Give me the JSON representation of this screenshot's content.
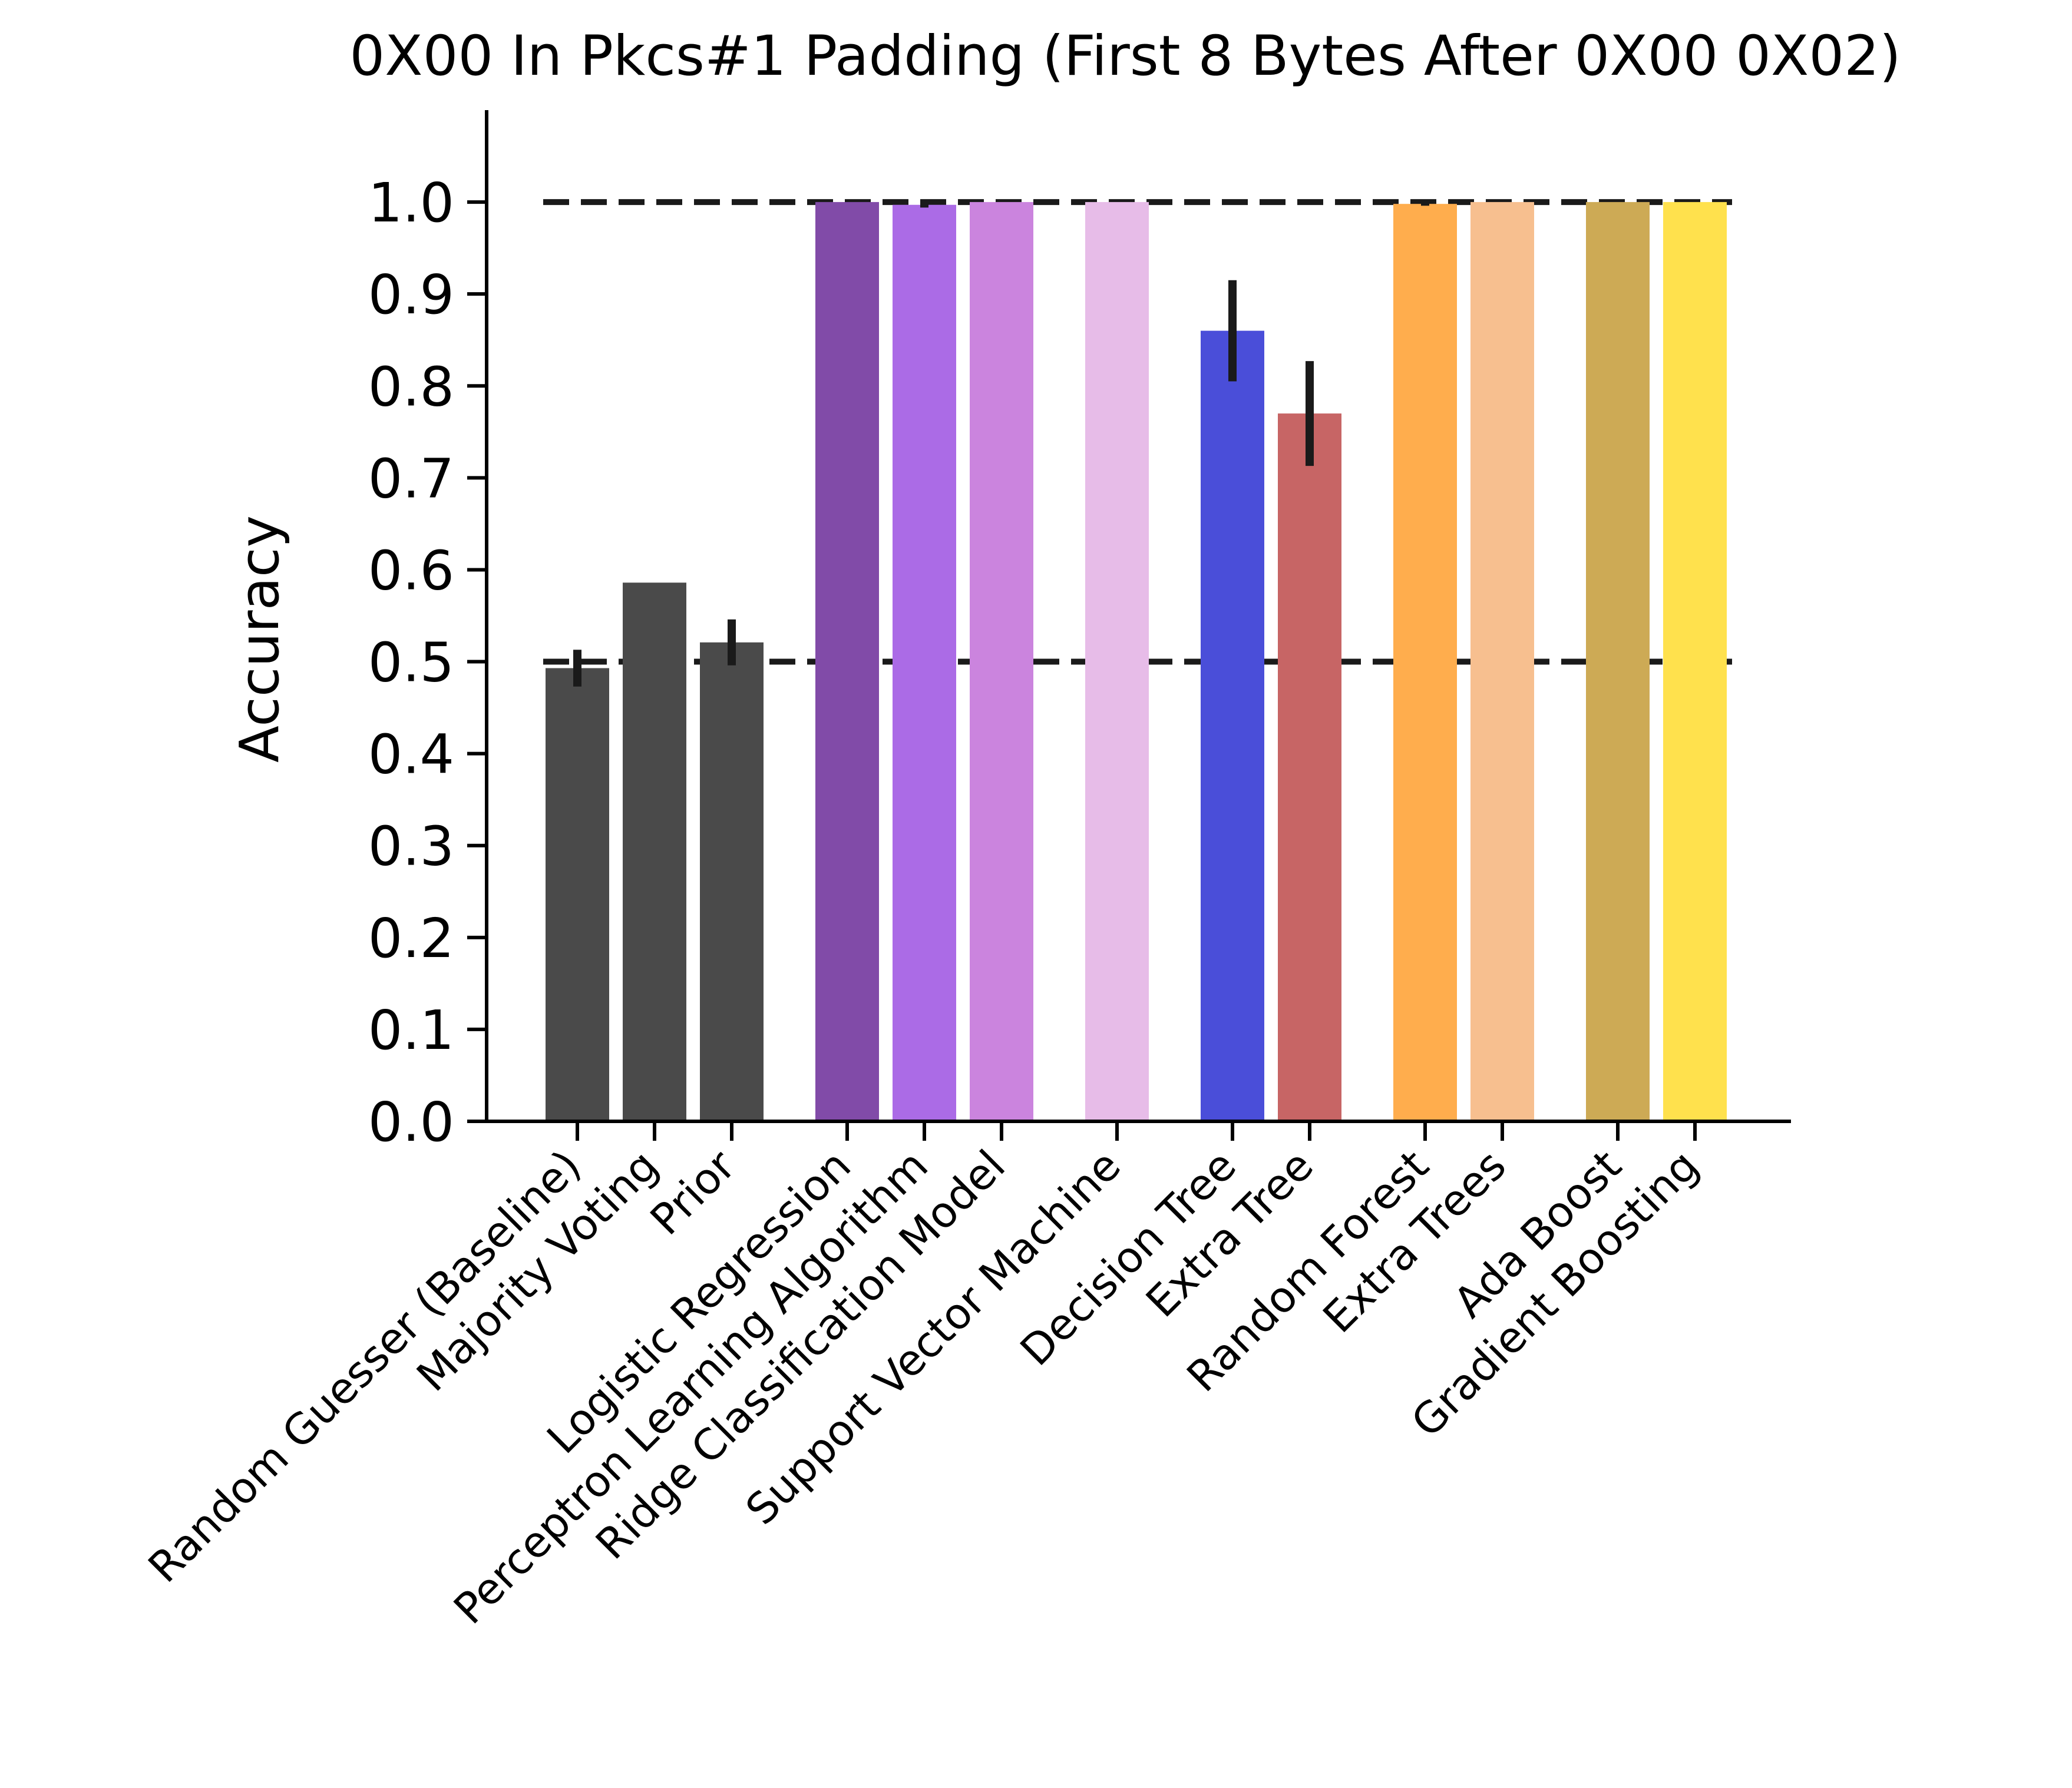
{
  "chart_data": {
    "type": "bar",
    "title": "0X00 In Pkcs#1 Padding (First 8 Bytes After 0X00 0X02)",
    "xlabel": "",
    "ylabel": "Accuracy",
    "ylim": [
      0,
      1.1
    ],
    "yticks": [
      "0.0",
      "0.1",
      "0.2",
      "0.3",
      "0.4",
      "0.5",
      "0.6",
      "0.7",
      "0.8",
      "0.9",
      "1.0"
    ],
    "grid": false,
    "legend": "none",
    "reference_lines": [
      1.0,
      0.5
    ],
    "bars": [
      {
        "label": "Random Guesser (Baseline)",
        "value": 0.493,
        "err": 0.02,
        "color": "#4a4a4a",
        "group": 0
      },
      {
        "label": "Majority Voting",
        "value": 0.586,
        "err": 0,
        "color": "#4a4a4a",
        "group": 0
      },
      {
        "label": "Prior",
        "value": 0.521,
        "err": 0.025,
        "color": "#4a4a4a",
        "group": 0
      },
      {
        "label": "Logistic Regression",
        "value": 1.0,
        "err": 0,
        "color": "#814ba8",
        "group": 1
      },
      {
        "label": "Perceptron Learning Algorithm",
        "value": 0.997,
        "err": 0.003,
        "color": "#ab6be6",
        "group": 1
      },
      {
        "label": "Ridge Classification Model",
        "value": 1.0,
        "err": 0,
        "color": "#cb84de",
        "group": 1
      },
      {
        "label": "Support Vector Machine",
        "value": 1.0,
        "err": 0,
        "color": "#e7bce8",
        "group": 2
      },
      {
        "label": "Decision Tree",
        "value": 0.86,
        "err": 0.055,
        "color": "#4a4ed9",
        "group": 3
      },
      {
        "label": "Extra Tree",
        "value": 0.77,
        "err": 0.057,
        "color": "#c76565",
        "group": 3
      },
      {
        "label": "Random Forest",
        "value": 0.998,
        "err": 0.002,
        "color": "#ffad4d",
        "group": 4
      },
      {
        "label": "Extra Trees",
        "value": 1.0,
        "err": 0,
        "color": "#f7bf8f",
        "group": 4
      },
      {
        "label": "Ada Boost",
        "value": 1.0,
        "err": 0,
        "color": "#cdaa55",
        "group": 5
      },
      {
        "label": "Gradient Boosting",
        "value": 1.0,
        "err": 0,
        "color": "#ffe14d",
        "group": 5
      }
    ]
  }
}
